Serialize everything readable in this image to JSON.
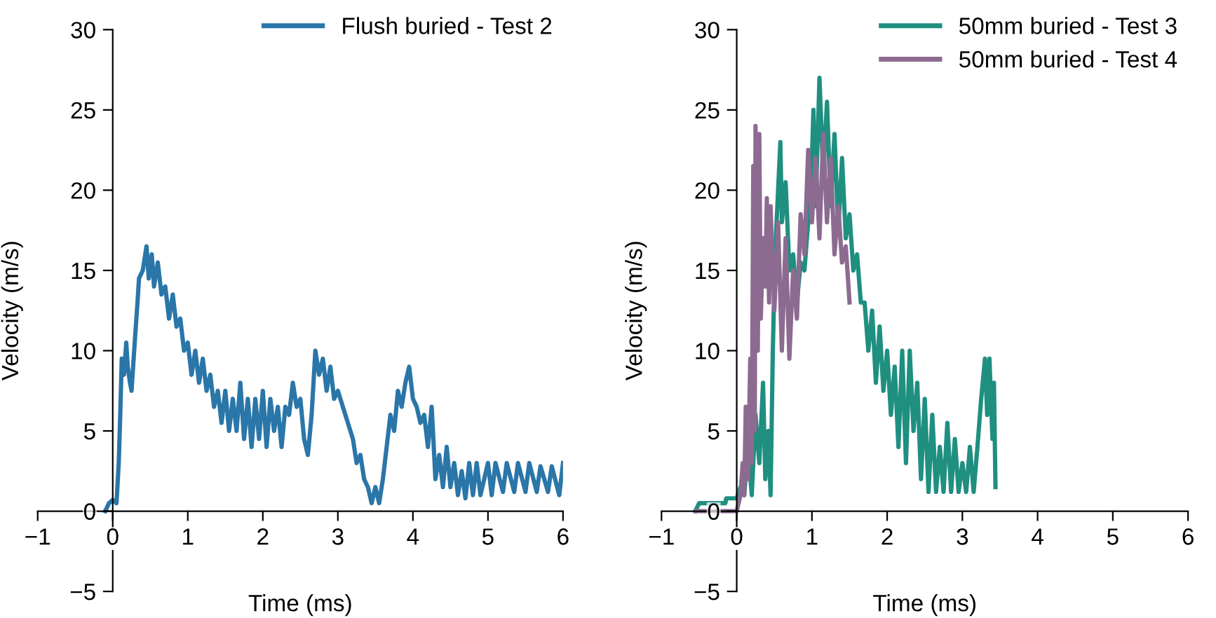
{
  "chart_data": [
    {
      "type": "line",
      "xlabel": "Time (ms)",
      "ylabel": "Velocity (m/s)",
      "xlim": [
        -1,
        6
      ],
      "ylim": [
        -5,
        30
      ],
      "xticks": [
        -1,
        0,
        1,
        2,
        3,
        4,
        5,
        6
      ],
      "yticks": [
        -5,
        0,
        5,
        10,
        15,
        20,
        25,
        30
      ],
      "legend": "top right",
      "series": [
        {
          "name": "Flush buried - Test 2",
          "color": "#2a76a8",
          "x": [
            -0.1,
            -0.05,
            0,
            0.05,
            0.08,
            0.1,
            0.12,
            0.15,
            0.18,
            0.2,
            0.23,
            0.25,
            0.3,
            0.33,
            0.35,
            0.4,
            0.45,
            0.48,
            0.52,
            0.55,
            0.6,
            0.65,
            0.7,
            0.75,
            0.8,
            0.85,
            0.9,
            0.95,
            1.0,
            1.05,
            1.1,
            1.15,
            1.2,
            1.25,
            1.3,
            1.35,
            1.4,
            1.45,
            1.5,
            1.55,
            1.6,
            1.65,
            1.7,
            1.75,
            1.8,
            1.85,
            1.9,
            1.95,
            2.0,
            2.05,
            2.1,
            2.15,
            2.2,
            2.25,
            2.3,
            2.35,
            2.4,
            2.45,
            2.5,
            2.55,
            2.6,
            2.65,
            2.7,
            2.75,
            2.8,
            2.85,
            2.9,
            2.95,
            3.0,
            3.1,
            3.2,
            3.25,
            3.3,
            3.35,
            3.4,
            3.45,
            3.5,
            3.55,
            3.6,
            3.65,
            3.7,
            3.75,
            3.8,
            3.85,
            3.9,
            3.95,
            4.0,
            4.05,
            4.1,
            4.15,
            4.2,
            4.25,
            4.3,
            4.35,
            4.4,
            4.45,
            4.5,
            4.55,
            4.6,
            4.65,
            4.7,
            4.75,
            4.8,
            4.85,
            4.9,
            5.0,
            5.05,
            5.1,
            5.2,
            5.25,
            5.35,
            5.4,
            5.5,
            5.55,
            5.65,
            5.7,
            5.8,
            5.85,
            5.95,
            6.0
          ],
          "values": [
            0,
            0.5,
            0.7,
            0.5,
            3,
            6,
            9.5,
            8.5,
            10.5,
            9,
            8,
            7.5,
            11,
            13,
            14.5,
            15,
            16.5,
            14.5,
            16,
            14,
            15.5,
            13.5,
            14,
            12,
            13.5,
            11.5,
            12,
            10,
            10.5,
            8.5,
            10,
            8,
            9.5,
            7.5,
            8.5,
            6.5,
            7.5,
            5.5,
            7.5,
            5,
            7,
            5,
            8,
            4.5,
            7,
            4,
            7,
            4.5,
            7.5,
            4,
            7,
            5,
            6.5,
            4,
            6.5,
            6,
            8,
            6.5,
            7,
            4.5,
            3.5,
            6,
            10,
            8.5,
            9.5,
            7.5,
            9,
            7,
            7.5,
            6,
            4.5,
            3,
            3.5,
            2,
            1.5,
            0.5,
            1.5,
            0.5,
            2,
            4,
            6,
            5,
            7.5,
            6.5,
            8,
            9,
            7,
            6.5,
            5.5,
            6,
            4,
            6.5,
            2,
            3.5,
            1.5,
            4,
            1.5,
            3,
            1,
            2.5,
            0.8,
            3,
            1,
            3,
            1,
            3,
            1,
            3,
            1.2,
            3,
            1.2,
            3,
            1.2,
            3,
            1.2,
            2.8,
            1.2,
            2.8,
            1,
            3
          ]
        }
      ]
    },
    {
      "type": "line",
      "xlabel": "Time (ms)",
      "ylabel": "Velocity (m/s)",
      "xlim": [
        -1,
        6
      ],
      "ylim": [
        -5,
        30
      ],
      "xticks": [
        -1,
        0,
        1,
        2,
        3,
        4,
        5,
        6
      ],
      "yticks": [
        -5,
        0,
        5,
        10,
        15,
        20,
        25,
        30
      ],
      "legend": "top right",
      "series": [
        {
          "name": "50mm buried - Test 3",
          "color": "#1f8f80",
          "x": [
            -0.55,
            -0.5,
            -0.15,
            -0.14,
            0,
            0.05,
            0.1,
            0.15,
            0.2,
            0.25,
            0.3,
            0.35,
            0.38,
            0.42,
            0.45,
            0.48,
            0.5,
            0.52,
            0.55,
            0.58,
            0.6,
            0.65,
            0.7,
            0.75,
            0.8,
            0.85,
            0.9,
            0.95,
            1.0,
            1.02,
            1.05,
            1.1,
            1.15,
            1.2,
            1.25,
            1.3,
            1.35,
            1.4,
            1.45,
            1.5,
            1.55,
            1.6,
            1.65,
            1.7,
            1.75,
            1.8,
            1.85,
            1.9,
            1.95,
            2.0,
            2.05,
            2.1,
            2.15,
            2.2,
            2.25,
            2.3,
            2.35,
            2.4,
            2.45,
            2.5,
            2.55,
            2.6,
            2.65,
            2.7,
            2.75,
            2.8,
            2.85,
            2.9,
            2.95,
            3.0,
            3.05,
            3.1,
            3.15,
            3.2,
            3.25,
            3.3,
            3.33,
            3.36,
            3.4,
            3.42,
            3.44
          ],
          "values": [
            0,
            0.5,
            0.5,
            0.8,
            0.8,
            1.5,
            1,
            4,
            1,
            6,
            3,
            8,
            2,
            5,
            1,
            10,
            14,
            17,
            20,
            23,
            18,
            20.5,
            15,
            16,
            13,
            15.5,
            15,
            18,
            22,
            25,
            19,
            27,
            21,
            25.5,
            19,
            23.5,
            17.5,
            22,
            17,
            18.5,
            15,
            16,
            13,
            13,
            10,
            12.5,
            8,
            11.5,
            7.5,
            10,
            6,
            9,
            4,
            10,
            3,
            10,
            5,
            8,
            2,
            7,
            1.2,
            6,
            1.2,
            4,
            1.2,
            5.5,
            1.2,
            4.5,
            1.2,
            3,
            1.2,
            4,
            1.2,
            4,
            7,
            9.5,
            6,
            9.5,
            4.5,
            8,
            1.5
          ]
        },
        {
          "name": "50mm buried - Test 4",
          "color": "#8d6b91",
          "x": [
            -0.55,
            0,
            0.05,
            0.08,
            0.1,
            0.12,
            0.15,
            0.18,
            0.2,
            0.22,
            0.24,
            0.25,
            0.28,
            0.3,
            0.32,
            0.35,
            0.38,
            0.4,
            0.43,
            0.45,
            0.5,
            0.55,
            0.6,
            0.65,
            0.7,
            0.75,
            0.8,
            0.85,
            0.9,
            0.95,
            1.0,
            1.05,
            1.1,
            1.15,
            1.2,
            1.25,
            1.3,
            1.35,
            1.4,
            1.45,
            1.5
          ],
          "values": [
            0,
            0,
            1,
            3,
            1,
            6.5,
            2,
            9.5,
            3,
            21.5,
            5,
            24,
            10,
            23.5,
            12,
            17,
            14,
            19.5,
            13,
            19,
            12.5,
            18,
            10,
            17,
            9.5,
            15,
            12,
            18.5,
            16,
            22.5,
            18,
            22,
            17,
            23.5,
            18,
            22,
            16,
            19,
            15.5,
            16.5,
            13
          ]
        }
      ]
    }
  ]
}
